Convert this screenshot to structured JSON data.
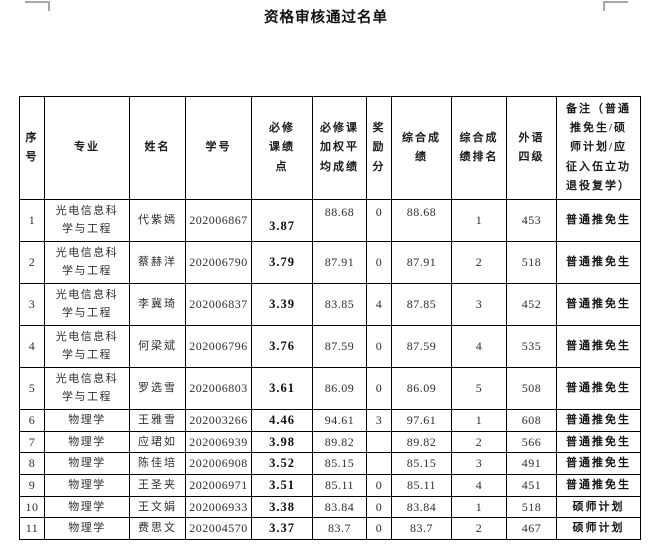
{
  "page": {
    "title": "资格审核通过名单"
  },
  "table": {
    "headers": [
      "序\n号",
      "专业",
      "姓名",
      "学号",
      "必修\n课绩\n点",
      "必修课\n加权平\n均成绩",
      "奖\n励\n分",
      "综合成\n绩",
      "综合成\n绩排名",
      "外语\n四级",
      "备注（普通\n推免生/硕\n师计划/应\n征入伍立功\n退役复学）"
    ],
    "rows": [
      {
        "no": "1",
        "major": "光电信息科学与工程",
        "name": "代紫嫣",
        "student_id": "202006867",
        "gpa": "3.87",
        "weighted_avg": "88.68",
        "bonus": "0",
        "composite": "88.68",
        "rank": "1",
        "cet4": "453",
        "remark": "普通推免生"
      },
      {
        "no": "2",
        "major": "光电信息科学与工程",
        "name": "蔡赫洋",
        "student_id": "202006790",
        "gpa": "3.79",
        "weighted_avg": "87.91",
        "bonus": "0",
        "composite": "87.91",
        "rank": "2",
        "cet4": "518",
        "remark": "普通推免生"
      },
      {
        "no": "3",
        "major": "光电信息科学与工程",
        "name": "李冀琦",
        "student_id": "202006837",
        "gpa": "3.39",
        "weighted_avg": "83.85",
        "bonus": "4",
        "composite": "87.85",
        "rank": "3",
        "cet4": "452",
        "remark": "普通推免生"
      },
      {
        "no": "4",
        "major": "光电信息科学与工程",
        "name": "何梁斌",
        "student_id": "202006796",
        "gpa": "3.76",
        "weighted_avg": "87.59",
        "bonus": "0",
        "composite": "87.59",
        "rank": "4",
        "cet4": "535",
        "remark": "普通推免生"
      },
      {
        "no": "5",
        "major": "光电信息科学与工程",
        "name": "罗选雪",
        "student_id": "202006803",
        "gpa": "3.61",
        "weighted_avg": "86.09",
        "bonus": "0",
        "composite": "86.09",
        "rank": "5",
        "cet4": "508",
        "remark": "普通推免生"
      },
      {
        "no": "6",
        "major": "物理学",
        "name": "王雅雪",
        "student_id": "202003266",
        "gpa": "4.46",
        "weighted_avg": "94.61",
        "bonus": "3",
        "composite": "97.61",
        "rank": "1",
        "cet4": "608",
        "remark": "普通推免生"
      },
      {
        "no": "7",
        "major": "物理学",
        "name": "应珺如",
        "student_id": "202006939",
        "gpa": "3.98",
        "weighted_avg": "89.82",
        "bonus": "",
        "composite": "89.82",
        "rank": "2",
        "cet4": "566",
        "remark": "普通推免生"
      },
      {
        "no": "8",
        "major": "物理学",
        "name": "陈佳培",
        "student_id": "202006908",
        "gpa": "3.52",
        "weighted_avg": "85.15",
        "bonus": "",
        "composite": "85.15",
        "rank": "3",
        "cet4": "491",
        "remark": "普通推免生"
      },
      {
        "no": "9",
        "major": "物理学",
        "name": "王圣夹",
        "student_id": "202006971",
        "gpa": "3.51",
        "weighted_avg": "85.11",
        "bonus": "0",
        "composite": "85.11",
        "rank": "4",
        "cet4": "451",
        "remark": "普通推免生"
      },
      {
        "no": "10",
        "major": "物理学",
        "name": "王文娟",
        "student_id": "202006933",
        "gpa": "3.38",
        "weighted_avg": "83.84",
        "bonus": "0",
        "composite": "83.84",
        "rank": "1",
        "cet4": "518",
        "remark": "硕师计划"
      },
      {
        "no": "11",
        "major": "物理学",
        "name": "费思文",
        "student_id": "202004570",
        "gpa": "3.37",
        "weighted_avg": "83.7",
        "bonus": "0",
        "composite": "83.7",
        "rank": "2",
        "cet4": "467",
        "remark": "硕师计划"
      }
    ]
  }
}
